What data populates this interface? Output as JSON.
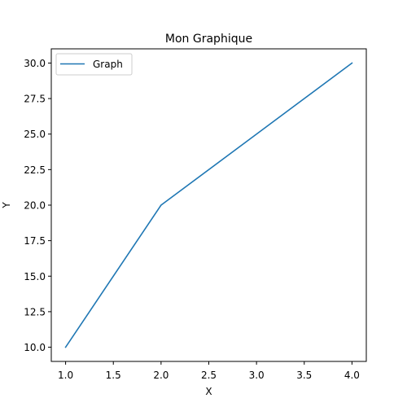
{
  "chart_data": {
    "type": "line",
    "title": "Mon Graphique",
    "xlabel": "X",
    "ylabel": "Y",
    "x": [
      1,
      2,
      3,
      4
    ],
    "series": [
      {
        "name": "Graph",
        "values": [
          10,
          20,
          25,
          30
        ],
        "color": "#1f77b4"
      }
    ],
    "xlim": [
      0.85,
      4.15
    ],
    "ylim": [
      9.0,
      31.0
    ],
    "xticks": [
      1.0,
      1.5,
      2.0,
      2.5,
      3.0,
      3.5,
      4.0
    ],
    "xtick_labels": [
      "1.0",
      "1.5",
      "2.0",
      "2.5",
      "3.0",
      "3.5",
      "4.0"
    ],
    "yticks": [
      10.0,
      12.5,
      15.0,
      17.5,
      20.0,
      22.5,
      25.0,
      27.5,
      30.0
    ],
    "ytick_labels": [
      "10.0",
      "12.5",
      "15.0",
      "17.5",
      "20.0",
      "22.5",
      "25.0",
      "27.5",
      "30.0"
    ],
    "grid": false,
    "legend_position": "top-left"
  }
}
